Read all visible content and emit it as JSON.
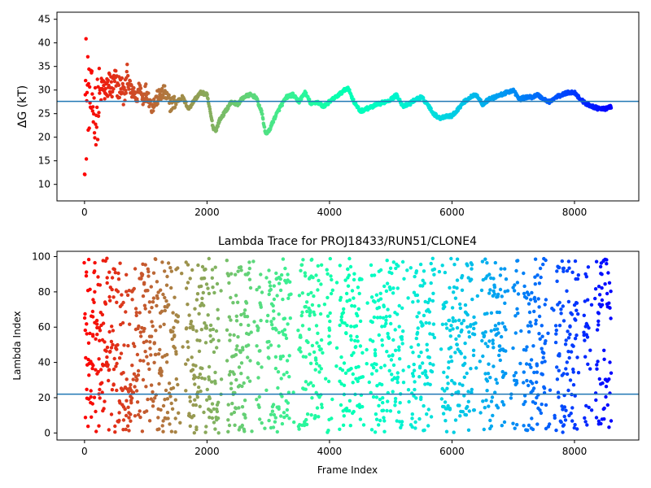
{
  "chart_data": [
    {
      "type": "scatter",
      "title": "",
      "xlabel": "",
      "ylabel": "ΔG (kT)",
      "xlim": [
        -450,
        9050
      ],
      "ylim": [
        6.5,
        46.5
      ],
      "xticks": [
        0,
        2000,
        4000,
        6000,
        8000
      ],
      "xtick_labels": [
        "0",
        "2000",
        "4000",
        "6000",
        "8000"
      ],
      "yticks": [
        10,
        15,
        20,
        25,
        30,
        35,
        40,
        45
      ],
      "ytick_labels": [
        "10",
        "15",
        "20",
        "25",
        "30",
        "35",
        "40",
        "45"
      ],
      "hline": 27.6,
      "colormap": "rainbow (red at frame 0 → violet at last frame)",
      "series": [
        {
          "x": [
            0,
            50,
            100,
            150,
            200,
            250,
            300,
            350,
            400,
            450,
            500,
            550,
            600,
            650,
            700,
            750,
            800,
            850,
            900,
            950,
            1000,
            1100,
            1200,
            1300,
            1400,
            1500,
            1600,
            1700,
            1800,
            1900,
            2000,
            2100,
            2150,
            2200,
            2300,
            2400,
            2500,
            2600,
            2700,
            2800,
            2900,
            2950,
            3000,
            3100,
            3200,
            3300,
            3400,
            3500,
            3600,
            3700,
            3800,
            3900,
            4000,
            4100,
            4200,
            4300,
            4400,
            4500,
            4600,
            4700,
            4800,
            4900,
            5000,
            5100,
            5200,
            5300,
            5400,
            5500,
            5600,
            5700,
            5800,
            5900,
            6000,
            6100,
            6200,
            6300,
            6400,
            6500,
            6600,
            6700,
            6800,
            6900,
            7000,
            7100,
            7200,
            7300,
            7400,
            7500,
            7600,
            7700,
            7800,
            7900,
            8000,
            8100,
            8200,
            8300,
            8400,
            8500,
            8600
          ],
          "y": [
            27.5,
            28.0,
            27.8,
            26.0,
            25.0,
            29.0,
            31.0,
            29.0,
            32.0,
            30.0,
            32.0,
            30.5,
            31.0,
            28.5,
            33.0,
            30.0,
            29.0,
            28.0,
            31.0,
            28.0,
            30.0,
            26.5,
            28.5,
            29.5,
            27.0,
            27.5,
            28.5,
            26.0,
            28.0,
            29.5,
            29.0,
            22.0,
            21.5,
            23.5,
            25.5,
            27.5,
            27.0,
            28.5,
            29.0,
            28.5,
            25.0,
            21.0,
            21.0,
            24.0,
            26.5,
            28.5,
            29.0,
            27.5,
            29.5,
            27.0,
            27.5,
            26.5,
            27.5,
            28.5,
            29.5,
            30.5,
            27.5,
            25.5,
            26.0,
            26.5,
            27.0,
            27.5,
            28.0,
            29.0,
            26.5,
            27.0,
            28.0,
            28.5,
            27.0,
            25.0,
            24.0,
            24.5,
            24.5,
            26.0,
            27.5,
            28.5,
            29.0,
            27.0,
            28.0,
            28.5,
            29.0,
            29.5,
            30.0,
            28.0,
            28.5,
            28.5,
            29.0,
            28.0,
            27.5,
            28.5,
            29.0,
            29.5,
            29.5,
            28.0,
            27.0,
            26.5,
            26.0,
            26.0,
            26.5
          ]
        }
      ]
    },
    {
      "type": "scatter",
      "title": "Lambda Trace for PROJ18433/RUN51/CLONE4",
      "xlabel": "Frame Index",
      "ylabel": "Lambda Index",
      "xlim": [
        -450,
        9050
      ],
      "ylim": [
        -4,
        103
      ],
      "xticks": [
        0,
        2000,
        4000,
        6000,
        8000
      ],
      "xtick_labels": [
        "0",
        "2000",
        "4000",
        "6000",
        "8000"
      ],
      "yticks": [
        0,
        20,
        40,
        60,
        80,
        100
      ],
      "ytick_labels": [
        "0",
        "20",
        "40",
        "60",
        "80",
        "100"
      ],
      "hline": 22,
      "colormap": "rainbow (red at frame 0 → violet at last frame)",
      "x_range": [
        0,
        8600
      ],
      "y_range": [
        0,
        99
      ]
    }
  ]
}
